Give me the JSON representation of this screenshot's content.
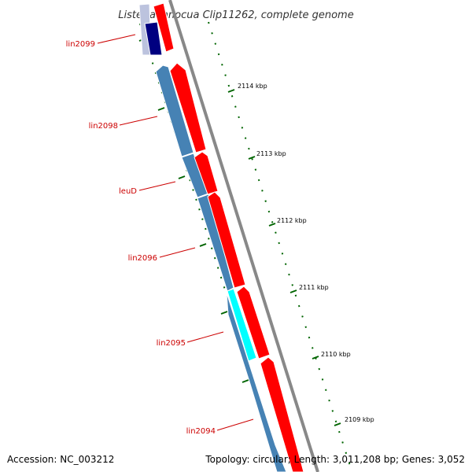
{
  "map": {
    "title": "Listeria innocua Clip11262, complete genome",
    "accession_text": "Accession: NC_003212",
    "summary_text": "Topology: circular; Length: 3,011,208 bp; Genes: 3,052"
  },
  "genes": [
    {
      "label": "lin2099"
    },
    {
      "label": "lin2098"
    },
    {
      "label": "leuD"
    },
    {
      "label": "lin2096"
    },
    {
      "label": "lin2095"
    },
    {
      "label": "lin2094"
    }
  ],
  "ticks": [
    {
      "label": "2114 kbp"
    },
    {
      "label": "2113 kbp"
    },
    {
      "label": "2112 kbp"
    },
    {
      "label": "2111 kbp"
    },
    {
      "label": "2110 kbp"
    },
    {
      "label": "2109 kbp"
    }
  ],
  "colors": {
    "backbone": "#888888",
    "forward_cds": "#ff0000",
    "reverse_cds": "#4682b4",
    "highlight_cds": "#00ffff",
    "dark_cds": "#000080",
    "label_red": "#cc0000",
    "tick_green": "#006400"
  }
}
